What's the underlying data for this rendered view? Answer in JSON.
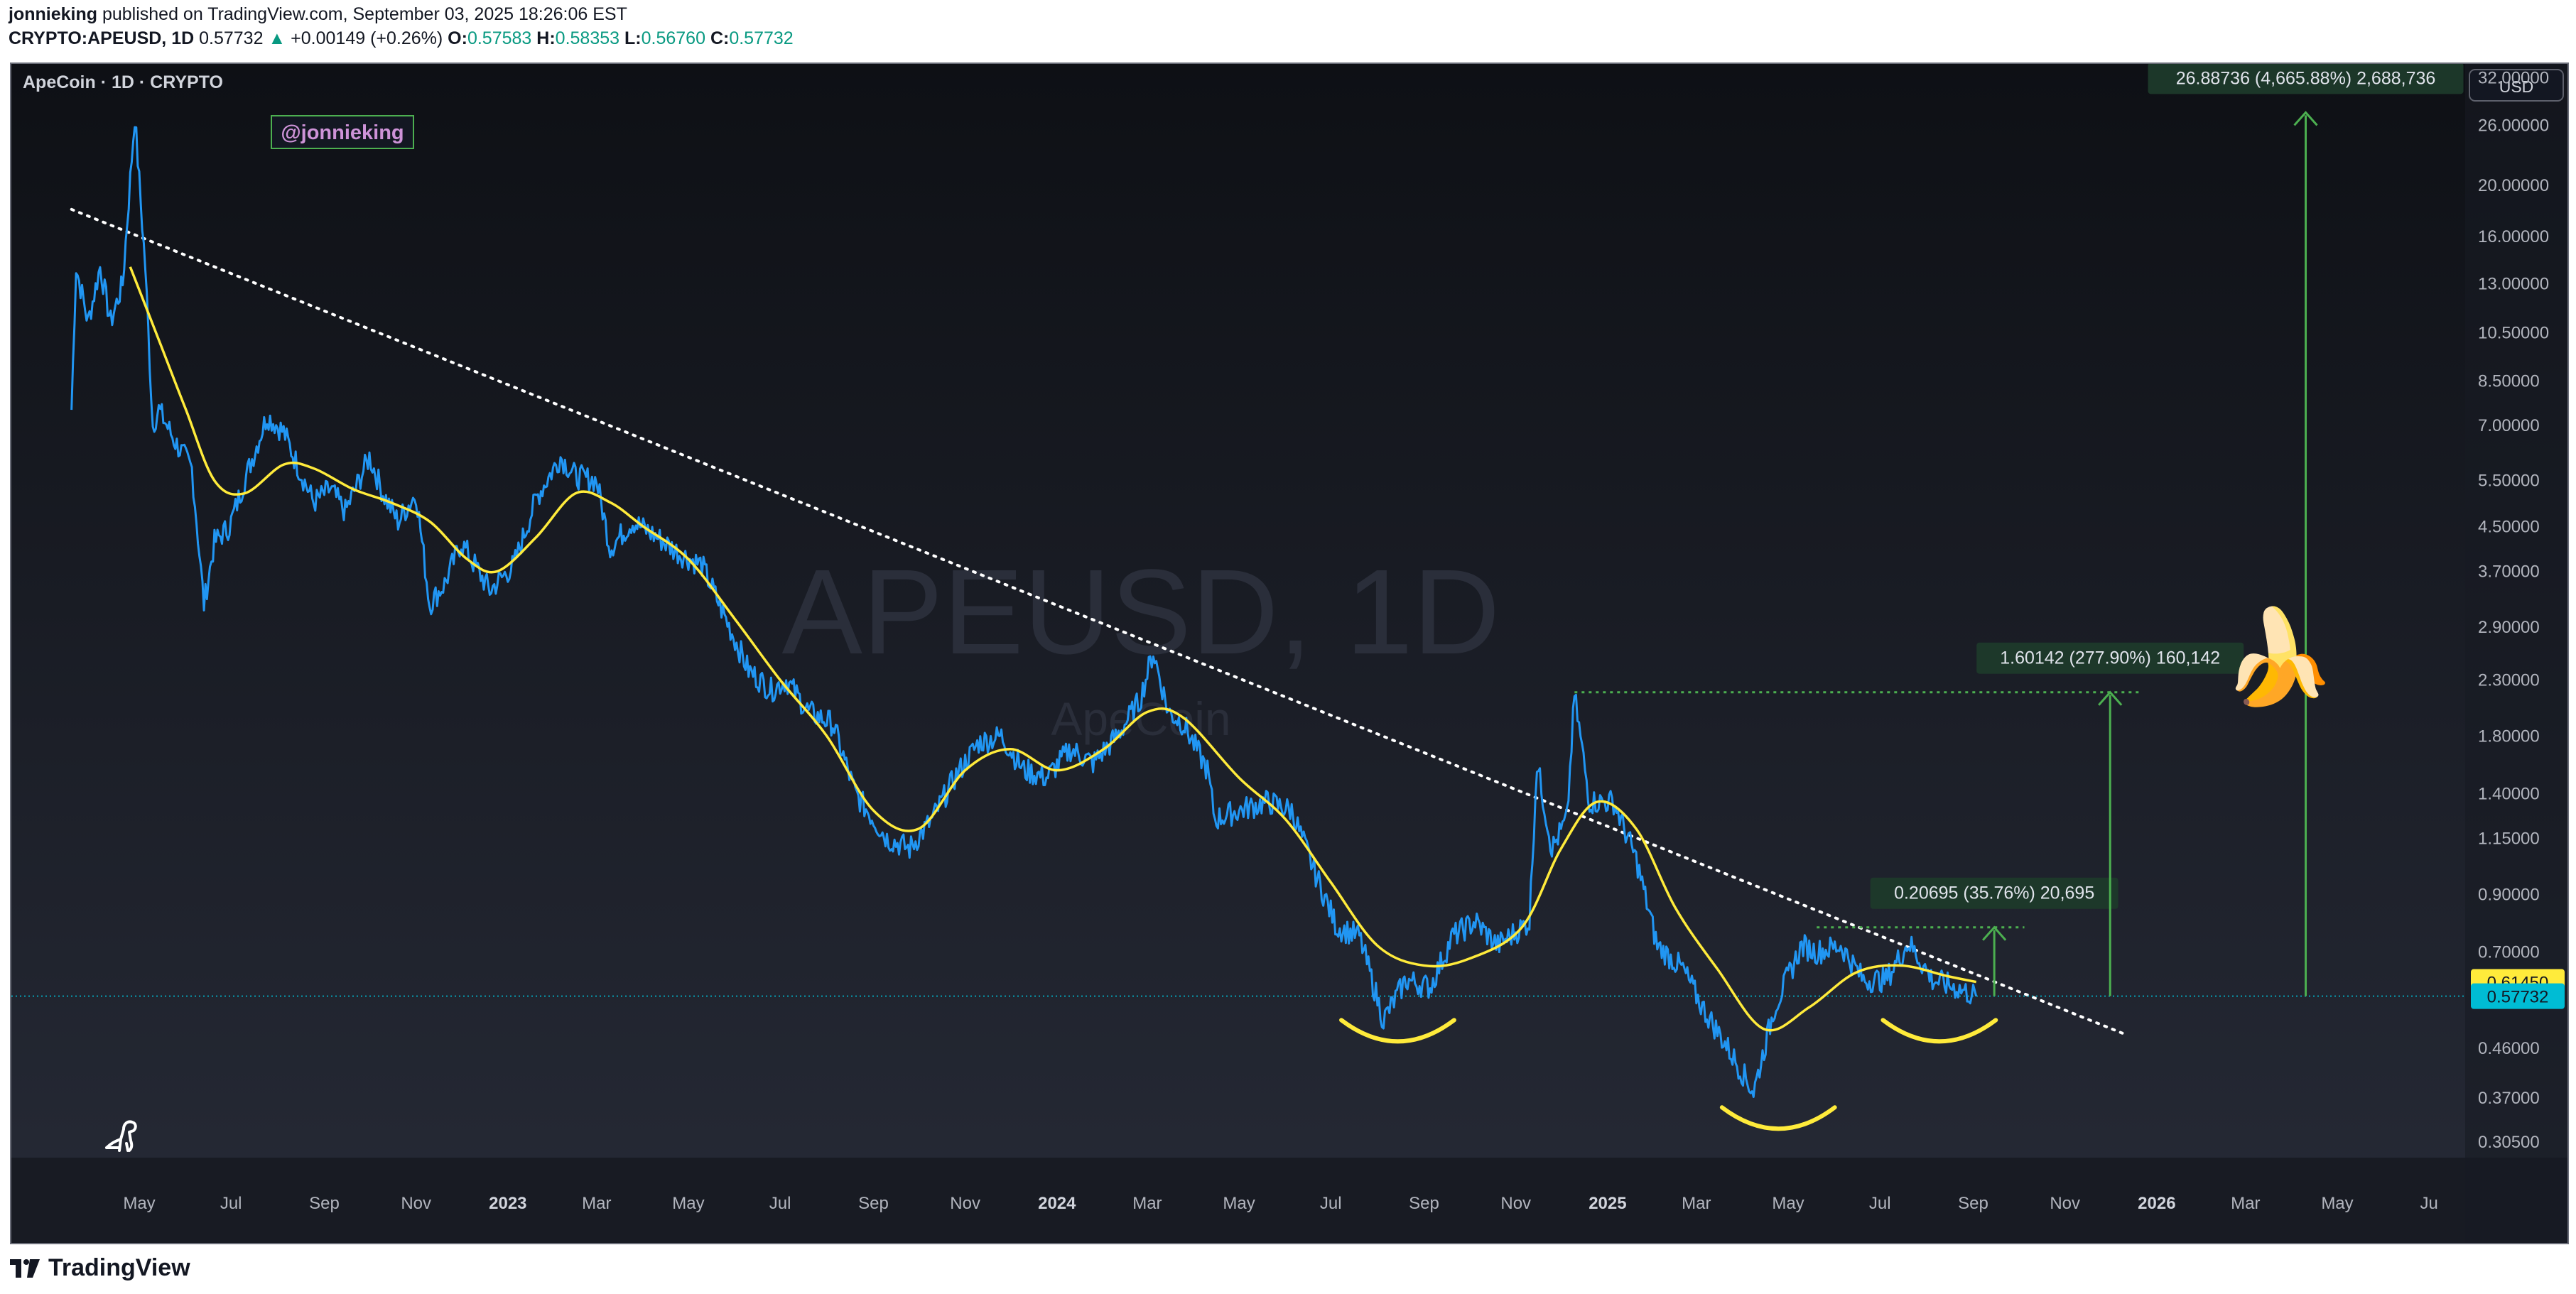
{
  "header": {
    "author": "jonnieking",
    "published_text": "published on TradingView.com, September 03, 2025 18:26:06 EST",
    "symbol": "CRYPTO:APEUSD, 1D",
    "last": "0.57732",
    "change_arrow": "▲",
    "change": "+0.00149 (+0.26%)",
    "o_label": "O:",
    "o": "0.57583",
    "h_label": "H:",
    "h": "0.58353",
    "l_label": "L:",
    "l": "0.56760",
    "c_label": "C:",
    "c": "0.57732"
  },
  "chart": {
    "legend_title": "ApeCoin · 1D · CRYPTO",
    "author_tag": "@jonnieking",
    "watermark_symbol": "APEUSD, 1D",
    "watermark_name": "ApeCoin",
    "currency_button": "USD",
    "emoji": "🍌"
  },
  "chart_data": {
    "type": "line",
    "scale": "log",
    "ylim": [
      0.285,
      34
    ],
    "y_ticks": [
      "32.00000",
      "26.00000",
      "20.00000",
      "16.00000",
      "13.00000",
      "10.50000",
      "8.50000",
      "7.00000",
      "5.50000",
      "4.50000",
      "3.70000",
      "2.90000",
      "2.30000",
      "1.80000",
      "1.40000",
      "1.15000",
      "0.90000",
      "0.70000",
      "0.46000",
      "0.37000",
      "0.30500"
    ],
    "y_tick_values": [
      32,
      26,
      20,
      16,
      13,
      10.5,
      8.5,
      7,
      5.5,
      4.5,
      3.7,
      2.9,
      2.3,
      1.8,
      1.4,
      1.15,
      0.9,
      0.7,
      0.46,
      0.37,
      0.305
    ],
    "x_ticks": [
      {
        "label": "May",
        "date": "2022-05-01",
        "bold": false
      },
      {
        "label": "Jul",
        "date": "2022-07-01",
        "bold": false
      },
      {
        "label": "Sep",
        "date": "2022-09-01",
        "bold": false
      },
      {
        "label": "Nov",
        "date": "2022-11-01",
        "bold": false
      },
      {
        "label": "2023",
        "date": "2023-01-01",
        "bold": true
      },
      {
        "label": "Mar",
        "date": "2023-03-01",
        "bold": false
      },
      {
        "label": "May",
        "date": "2023-05-01",
        "bold": false
      },
      {
        "label": "Jul",
        "date": "2023-07-01",
        "bold": false
      },
      {
        "label": "Sep",
        "date": "2023-09-01",
        "bold": false
      },
      {
        "label": "Nov",
        "date": "2023-11-01",
        "bold": false
      },
      {
        "label": "2024",
        "date": "2024-01-01",
        "bold": true
      },
      {
        "label": "Mar",
        "date": "2024-03-01",
        "bold": false
      },
      {
        "label": "May",
        "date": "2024-05-01",
        "bold": false
      },
      {
        "label": "Jul",
        "date": "2024-07-01",
        "bold": false
      },
      {
        "label": "Sep",
        "date": "2024-09-01",
        "bold": false
      },
      {
        "label": "Nov",
        "date": "2024-11-01",
        "bold": false
      },
      {
        "label": "2025",
        "date": "2025-01-01",
        "bold": true
      },
      {
        "label": "Mar",
        "date": "2025-03-01",
        "bold": false
      },
      {
        "label": "May",
        "date": "2025-05-01",
        "bold": false
      },
      {
        "label": "Jul",
        "date": "2025-07-01",
        "bold": false
      },
      {
        "label": "Sep",
        "date": "2025-09-01",
        "bold": false
      },
      {
        "label": "Nov",
        "date": "2025-11-01",
        "bold": false
      },
      {
        "label": "2026",
        "date": "2026-01-01",
        "bold": true
      },
      {
        "label": "Mar",
        "date": "2026-03-01",
        "bold": false
      },
      {
        "label": "May",
        "date": "2026-05-01",
        "bold": false
      },
      {
        "label": "Ju",
        "date": "2026-07-01",
        "bold": false
      }
    ],
    "price_series": {
      "color": "#2196f3",
      "points": [
        [
          "2022-03-17",
          7.5
        ],
        [
          "2022-03-20",
          14
        ],
        [
          "2022-03-28",
          11
        ],
        [
          "2022-04-05",
          14
        ],
        [
          "2022-04-12",
          11
        ],
        [
          "2022-04-20",
          13
        ],
        [
          "2022-04-28",
          27
        ],
        [
          "2022-05-05",
          14
        ],
        [
          "2022-05-10",
          7
        ],
        [
          "2022-05-14",
          7.5
        ],
        [
          "2022-05-25",
          6.5
        ],
        [
          "2022-06-05",
          5.8
        ],
        [
          "2022-06-13",
          3.2
        ],
        [
          "2022-06-20",
          4.2
        ],
        [
          "2022-06-30",
          4.5
        ],
        [
          "2022-07-10",
          5.5
        ],
        [
          "2022-07-25",
          7.3
        ],
        [
          "2022-08-05",
          6.8
        ],
        [
          "2022-08-15",
          5.8
        ],
        [
          "2022-08-25",
          5.0
        ],
        [
          "2022-09-05",
          5.3
        ],
        [
          "2022-09-15",
          4.8
        ],
        [
          "2022-10-01",
          6.1
        ],
        [
          "2022-10-10",
          5.2
        ],
        [
          "2022-10-20",
          4.6
        ],
        [
          "2022-11-01",
          5.2
        ],
        [
          "2022-11-10",
          3.2
        ],
        [
          "2022-11-20",
          3.5
        ],
        [
          "2022-12-01",
          4.2
        ],
        [
          "2022-12-20",
          3.4
        ],
        [
          "2023-01-05",
          3.8
        ],
        [
          "2023-01-20",
          5.1
        ],
        [
          "2023-02-05",
          6.1
        ],
        [
          "2023-02-15",
          5.6
        ],
        [
          "2023-03-01",
          5.5
        ],
        [
          "2023-03-10",
          4.1
        ],
        [
          "2023-03-25",
          4.6
        ],
        [
          "2023-04-10",
          4.3
        ],
        [
          "2023-04-25",
          4.0
        ],
        [
          "2023-05-10",
          3.8
        ],
        [
          "2023-06-10",
          2.4
        ],
        [
          "2023-06-25",
          2.2
        ],
        [
          "2023-07-05",
          2.3
        ],
        [
          "2023-07-20",
          2.0
        ],
        [
          "2023-08-05",
          1.9
        ],
        [
          "2023-08-20",
          1.4
        ],
        [
          "2023-09-10",
          1.15
        ],
        [
          "2023-09-25",
          1.1
        ],
        [
          "2023-10-10",
          1.25
        ],
        [
          "2023-10-25",
          1.5
        ],
        [
          "2023-11-10",
          1.75
        ],
        [
          "2023-11-25",
          1.8
        ],
        [
          "2023-12-10",
          1.55
        ],
        [
          "2023-12-25",
          1.5
        ],
        [
          "2024-01-10",
          1.7
        ],
        [
          "2024-01-25",
          1.6
        ],
        [
          "2024-02-10",
          1.8
        ],
        [
          "2024-02-25",
          2.1
        ],
        [
          "2024-03-05",
          2.6
        ],
        [
          "2024-03-15",
          2.0
        ],
        [
          "2024-03-25",
          1.9
        ],
        [
          "2024-04-10",
          1.55
        ],
        [
          "2024-04-15",
          1.25
        ],
        [
          "2024-05-01",
          1.3
        ],
        [
          "2024-05-20",
          1.35
        ],
        [
          "2024-06-05",
          1.3
        ],
        [
          "2024-06-20",
          1.0
        ],
        [
          "2024-07-05",
          0.78
        ],
        [
          "2024-07-20",
          0.75
        ],
        [
          "2024-08-05",
          0.52
        ],
        [
          "2024-08-20",
          0.62
        ],
        [
          "2024-09-05",
          0.6
        ],
        [
          "2024-09-20",
          0.75
        ],
        [
          "2024-10-05",
          0.8
        ],
        [
          "2024-10-20",
          0.72
        ],
        [
          "2024-11-10",
          0.8
        ],
        [
          "2024-11-15",
          1.6
        ],
        [
          "2024-11-25",
          1.1
        ],
        [
          "2024-12-05",
          1.25
        ],
        [
          "2024-12-10",
          2.15
        ],
        [
          "2024-12-20",
          1.35
        ],
        [
          "2025-01-05",
          1.35
        ],
        [
          "2025-01-20",
          1.05
        ],
        [
          "2025-02-03",
          0.72
        ],
        [
          "2025-02-20",
          0.65
        ],
        [
          "2025-03-05",
          0.55
        ],
        [
          "2025-03-20",
          0.47
        ],
        [
          "2025-04-08",
          0.38
        ],
        [
          "2025-04-22",
          0.55
        ],
        [
          "2025-05-10",
          0.72
        ],
        [
          "2025-05-20",
          0.7
        ],
        [
          "2025-06-05",
          0.72
        ],
        [
          "2025-06-20",
          0.62
        ],
        [
          "2025-07-05",
          0.62
        ],
        [
          "2025-07-20",
          0.73
        ],
        [
          "2025-08-05",
          0.62
        ],
        [
          "2025-08-20",
          0.6
        ],
        [
          "2025-09-03",
          0.57732
        ]
      ]
    },
    "ma_series": {
      "color": "#ffeb3b",
      "points": [
        [
          "2022-04-25",
          14
        ],
        [
          "2022-05-15",
          10
        ],
        [
          "2022-06-01",
          7.5
        ],
        [
          "2022-06-20",
          5.5
        ],
        [
          "2022-07-10",
          5.2
        ],
        [
          "2022-08-05",
          5.9
        ],
        [
          "2022-08-25",
          5.8
        ],
        [
          "2022-09-20",
          5.3
        ],
        [
          "2022-10-15",
          5.0
        ],
        [
          "2022-11-10",
          4.6
        ],
        [
          "2022-12-05",
          3.9
        ],
        [
          "2022-12-25",
          3.7
        ],
        [
          "2023-01-20",
          4.3
        ],
        [
          "2023-02-15",
          5.2
        ],
        [
          "2023-03-10",
          5.0
        ],
        [
          "2023-04-01",
          4.5
        ],
        [
          "2023-05-01",
          3.9
        ],
        [
          "2023-06-01",
          3.0
        ],
        [
          "2023-07-01",
          2.3
        ],
        [
          "2023-08-01",
          1.8
        ],
        [
          "2023-09-01",
          1.3
        ],
        [
          "2023-10-01",
          1.2
        ],
        [
          "2023-11-01",
          1.55
        ],
        [
          "2023-12-01",
          1.7
        ],
        [
          "2024-01-01",
          1.55
        ],
        [
          "2024-02-01",
          1.7
        ],
        [
          "2024-03-01",
          2.0
        ],
        [
          "2024-03-25",
          1.95
        ],
        [
          "2024-05-01",
          1.5
        ],
        [
          "2024-06-01",
          1.25
        ],
        [
          "2024-07-01",
          0.95
        ],
        [
          "2024-08-01",
          0.72
        ],
        [
          "2024-09-01",
          0.66
        ],
        [
          "2024-10-01",
          0.68
        ],
        [
          "2024-11-05",
          0.78
        ],
        [
          "2024-12-01",
          1.1
        ],
        [
          "2024-12-25",
          1.35
        ],
        [
          "2025-01-20",
          1.2
        ],
        [
          "2025-02-15",
          0.85
        ],
        [
          "2025-03-15",
          0.65
        ],
        [
          "2025-04-15",
          0.5
        ],
        [
          "2025-05-15",
          0.55
        ],
        [
          "2025-06-15",
          0.64
        ],
        [
          "2025-07-15",
          0.66
        ],
        [
          "2025-08-15",
          0.63
        ],
        [
          "2025-09-03",
          0.6145
        ]
      ]
    },
    "trendline": {
      "start": [
        "2022-03-17",
        18
      ],
      "end": [
        "2025-12-10",
        0.49
      ],
      "style": "dotted",
      "color": "#ffffff"
    },
    "current_price_line": {
      "value": 0.57732,
      "color": "#00bcd4"
    },
    "price_labels": [
      {
        "value": 0.6145,
        "text": "0.61450",
        "bg": "#ffeb3b",
        "fg": "#131722"
      },
      {
        "value": 0.57732,
        "text": "0.57732",
        "bg": "#00bcd4",
        "fg": "#131722"
      }
    ],
    "measurements": [
      {
        "x_date": "2025-09-15",
        "from": 0.57732,
        "to": 0.78,
        "label": "0.20695 (35.76%) 20,695",
        "level_from": "2025-05-20",
        "level_to": "2025-10-05",
        "line_extends_to": "2025-10-05"
      },
      {
        "x_date": "2025-12-01",
        "from": 0.57732,
        "to": 2.18,
        "label": "1.60142 (277.90%) 160,142",
        "level_from": "2024-12-10",
        "level_to": "2025-12-20",
        "line_extends_to": "2025-12-20"
      },
      {
        "x_date": "2026-04-10",
        "from": 0.57732,
        "to": 27.5,
        "label": "26.88736 (4,665.88%) 2,688,736"
      }
    ],
    "curves": [
      {
        "center": "2024-08-15",
        "value": 0.52,
        "width_days": 75
      },
      {
        "center": "2025-04-25",
        "value": 0.355,
        "width_days": 75
      },
      {
        "center": "2025-08-10",
        "value": 0.52,
        "width_days": 75
      }
    ],
    "xlim": [
      "2022-02-05",
      "2026-07-25"
    ]
  }
}
